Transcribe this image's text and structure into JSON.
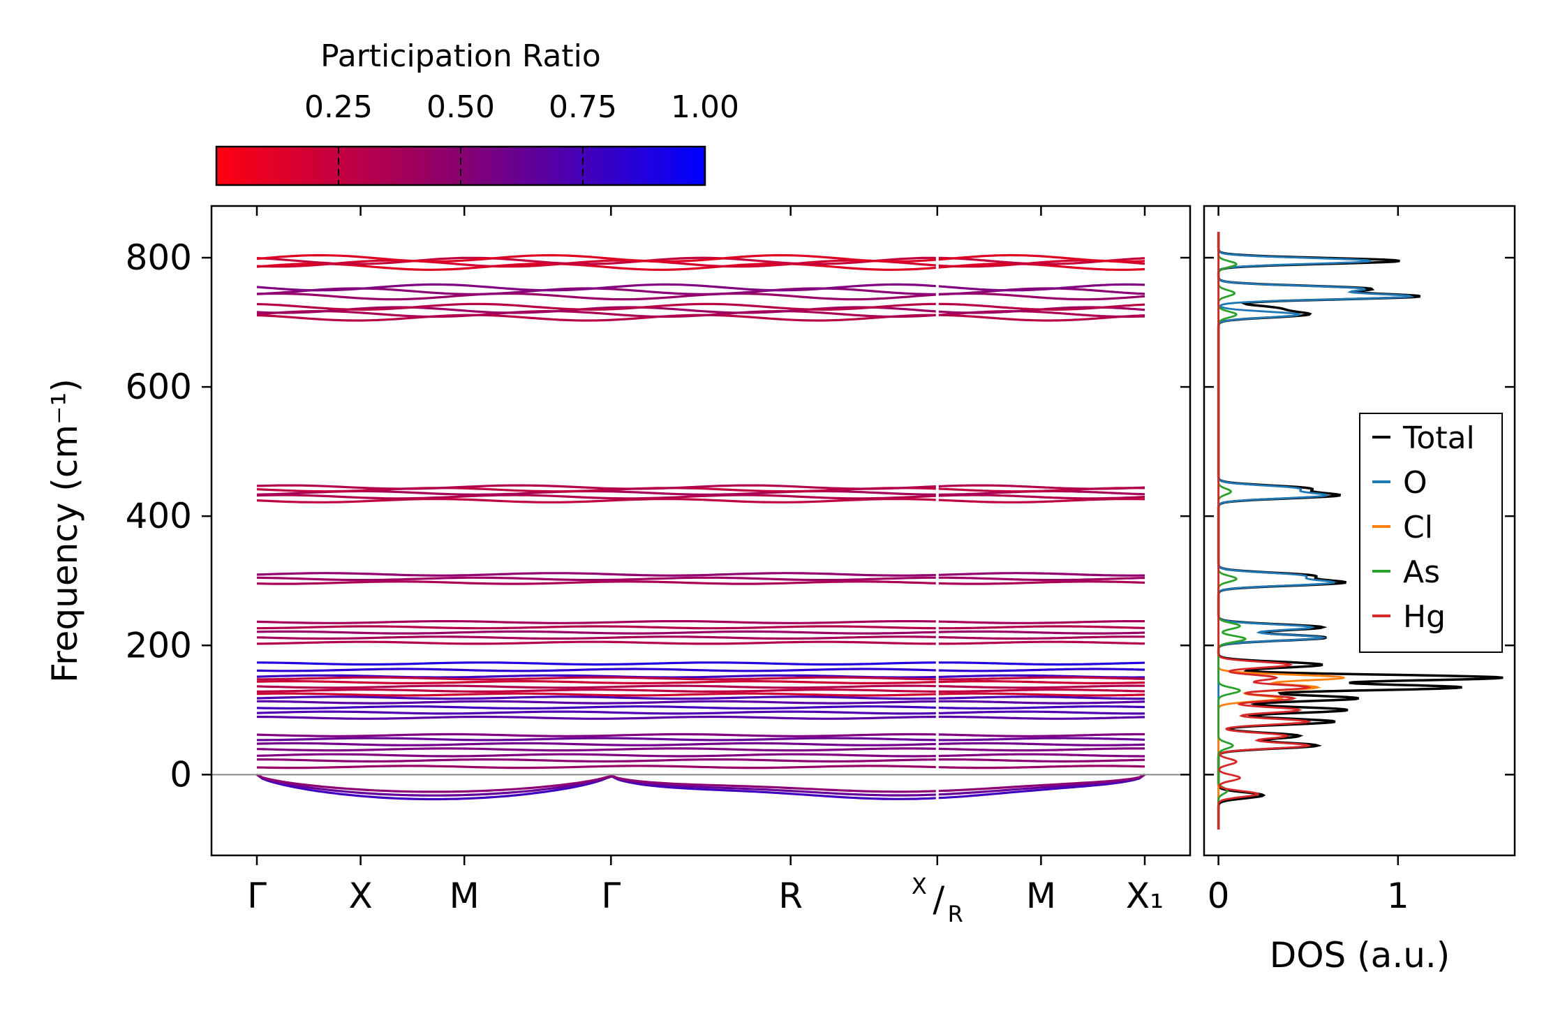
{
  "chart_data": [
    {
      "type": "line",
      "title": "",
      "xlabel": "",
      "ylabel": "Frequency (cm⁻¹)",
      "ylim": [
        -125,
        880
      ],
      "y_ticks": [
        0,
        200,
        400,
        600,
        800
      ],
      "y_tick_labels": [
        "0",
        "200",
        "400",
        "600",
        "800"
      ],
      "path_points": [
        {
          "label": "Γ",
          "x": 0
        },
        {
          "label": "X",
          "x": 1
        },
        {
          "label": "M",
          "x": 2
        },
        {
          "label": "Γ",
          "x": 3.414
        },
        {
          "label": "R",
          "x": 5.146
        },
        {
          "label_main": "X",
          "label_sub": "R",
          "x": 6.56
        },
        {
          "label": "M",
          "x": 7.56
        },
        {
          "label": "X₁",
          "x": 8.56
        }
      ],
      "path_break_x": 6.56,
      "color_by": "participation_ratio",
      "band_groups": [
        {
          "freqs": [
            786,
            791,
            795,
            799
          ],
          "participation": 0.18
        },
        {
          "freqs": [
            740,
            748,
            754
          ],
          "participation": 0.45
        },
        {
          "freqs": [
            707,
            713,
            719,
            724
          ],
          "participation": 0.33
        },
        {
          "freqs": [
            424,
            430,
            436,
            441,
            445
          ],
          "participation": 0.3
        },
        {
          "freqs": [
            297,
            303,
            310
          ],
          "participation": 0.38
        },
        {
          "freqs": [
            204,
            212,
            220,
            228,
            236
          ],
          "participation": 0.35
        },
        {
          "freqs": [
            152,
            162,
            172
          ],
          "participation": 0.82
        },
        {
          "freqs": [
            124,
            130,
            136,
            143,
            149
          ],
          "participation": 0.25
        },
        {
          "freqs": [
            88,
            96,
            104,
            112,
            119
          ],
          "participation": 0.7
        },
        {
          "freqs": [
            39,
            47,
            55,
            61
          ],
          "participation": 0.55
        },
        {
          "freqs": [
            12,
            22,
            30
          ],
          "participation": 0.45
        }
      ],
      "acoustic_negative_min": -38
    },
    {
      "type": "line",
      "xlabel": "DOS (a.u.)",
      "ylabel": "",
      "xlim": [
        -0.08,
        1.65
      ],
      "x_ticks": [
        0,
        1
      ],
      "x_tick_labels": [
        "0",
        "1"
      ],
      "ylim": [
        -125,
        880
      ],
      "legend": {
        "placement": "center-right",
        "entries": [
          {
            "label": "Total",
            "color": "#000000"
          },
          {
            "label": "O",
            "color": "#1f77b4"
          },
          {
            "label": "Cl",
            "color": "#ff7f0e"
          },
          {
            "label": "As",
            "color": "#2ca02c"
          },
          {
            "label": "Hg",
            "color": "#d62728"
          }
        ]
      },
      "series": [
        {
          "name": "Total",
          "color": "#000000",
          "peaks": [
            [
              -32,
              0.25
            ],
            [
              45,
              0.55
            ],
            [
              60,
              0.45
            ],
            [
              82,
              0.65
            ],
            [
              100,
              0.72
            ],
            [
              118,
              0.78
            ],
            [
              135,
              1.35
            ],
            [
              150,
              1.58
            ],
            [
              170,
              0.58
            ],
            [
              212,
              0.6
            ],
            [
              228,
              0.58
            ],
            [
              297,
              0.68
            ],
            [
              308,
              0.5
            ],
            [
              432,
              0.65
            ],
            [
              443,
              0.48
            ],
            [
              712,
              0.48
            ],
            [
              722,
              0.3
            ],
            [
              740,
              1.1
            ],
            [
              752,
              0.82
            ],
            [
              795,
              1.01
            ]
          ]
        },
        {
          "name": "O",
          "color": "#1f77b4",
          "peaks": [
            [
              212,
              0.58
            ],
            [
              228,
              0.52
            ],
            [
              297,
              0.62
            ],
            [
              308,
              0.45
            ],
            [
              432,
              0.58
            ],
            [
              443,
              0.42
            ],
            [
              712,
              0.45
            ],
            [
              740,
              1.05
            ],
            [
              752,
              0.78
            ],
            [
              795,
              0.85
            ]
          ]
        },
        {
          "name": "Cl",
          "color": "#ff7f0e",
          "peaks": [
            [
              118,
              0.35
            ],
            [
              135,
              0.55
            ],
            [
              150,
              0.7
            ]
          ]
        },
        {
          "name": "As",
          "color": "#2ca02c",
          "peaks": [
            [
              -25,
              0.05
            ],
            [
              45,
              0.08
            ],
            [
              130,
              0.12
            ],
            [
              210,
              0.15
            ],
            [
              230,
              0.12
            ],
            [
              303,
              0.1
            ],
            [
              438,
              0.07
            ],
            [
              712,
              0.1
            ],
            [
              745,
              0.09
            ],
            [
              790,
              0.1
            ]
          ]
        },
        {
          "name": "Hg",
          "color": "#d62728",
          "peaks": [
            [
              -30,
              0.22
            ],
            [
              -5,
              0.12
            ],
            [
              20,
              0.1
            ],
            [
              45,
              0.5
            ],
            [
              60,
              0.38
            ],
            [
              82,
              0.5
            ],
            [
              100,
              0.45
            ],
            [
              118,
              0.42
            ],
            [
              135,
              0.5
            ],
            [
              150,
              0.32
            ],
            [
              170,
              0.4
            ]
          ]
        }
      ]
    },
    {
      "type": "heatmap",
      "title": "Participation Ratio",
      "orientation": "horizontal",
      "range": [
        0.0,
        1.0
      ],
      "ticks": [
        0.25,
        0.5,
        0.75,
        1.0
      ],
      "tick_labels": [
        "0.25",
        "0.50",
        "0.75",
        "1.00"
      ],
      "colors": [
        "#ff0000",
        "#0000ff"
      ]
    }
  ]
}
